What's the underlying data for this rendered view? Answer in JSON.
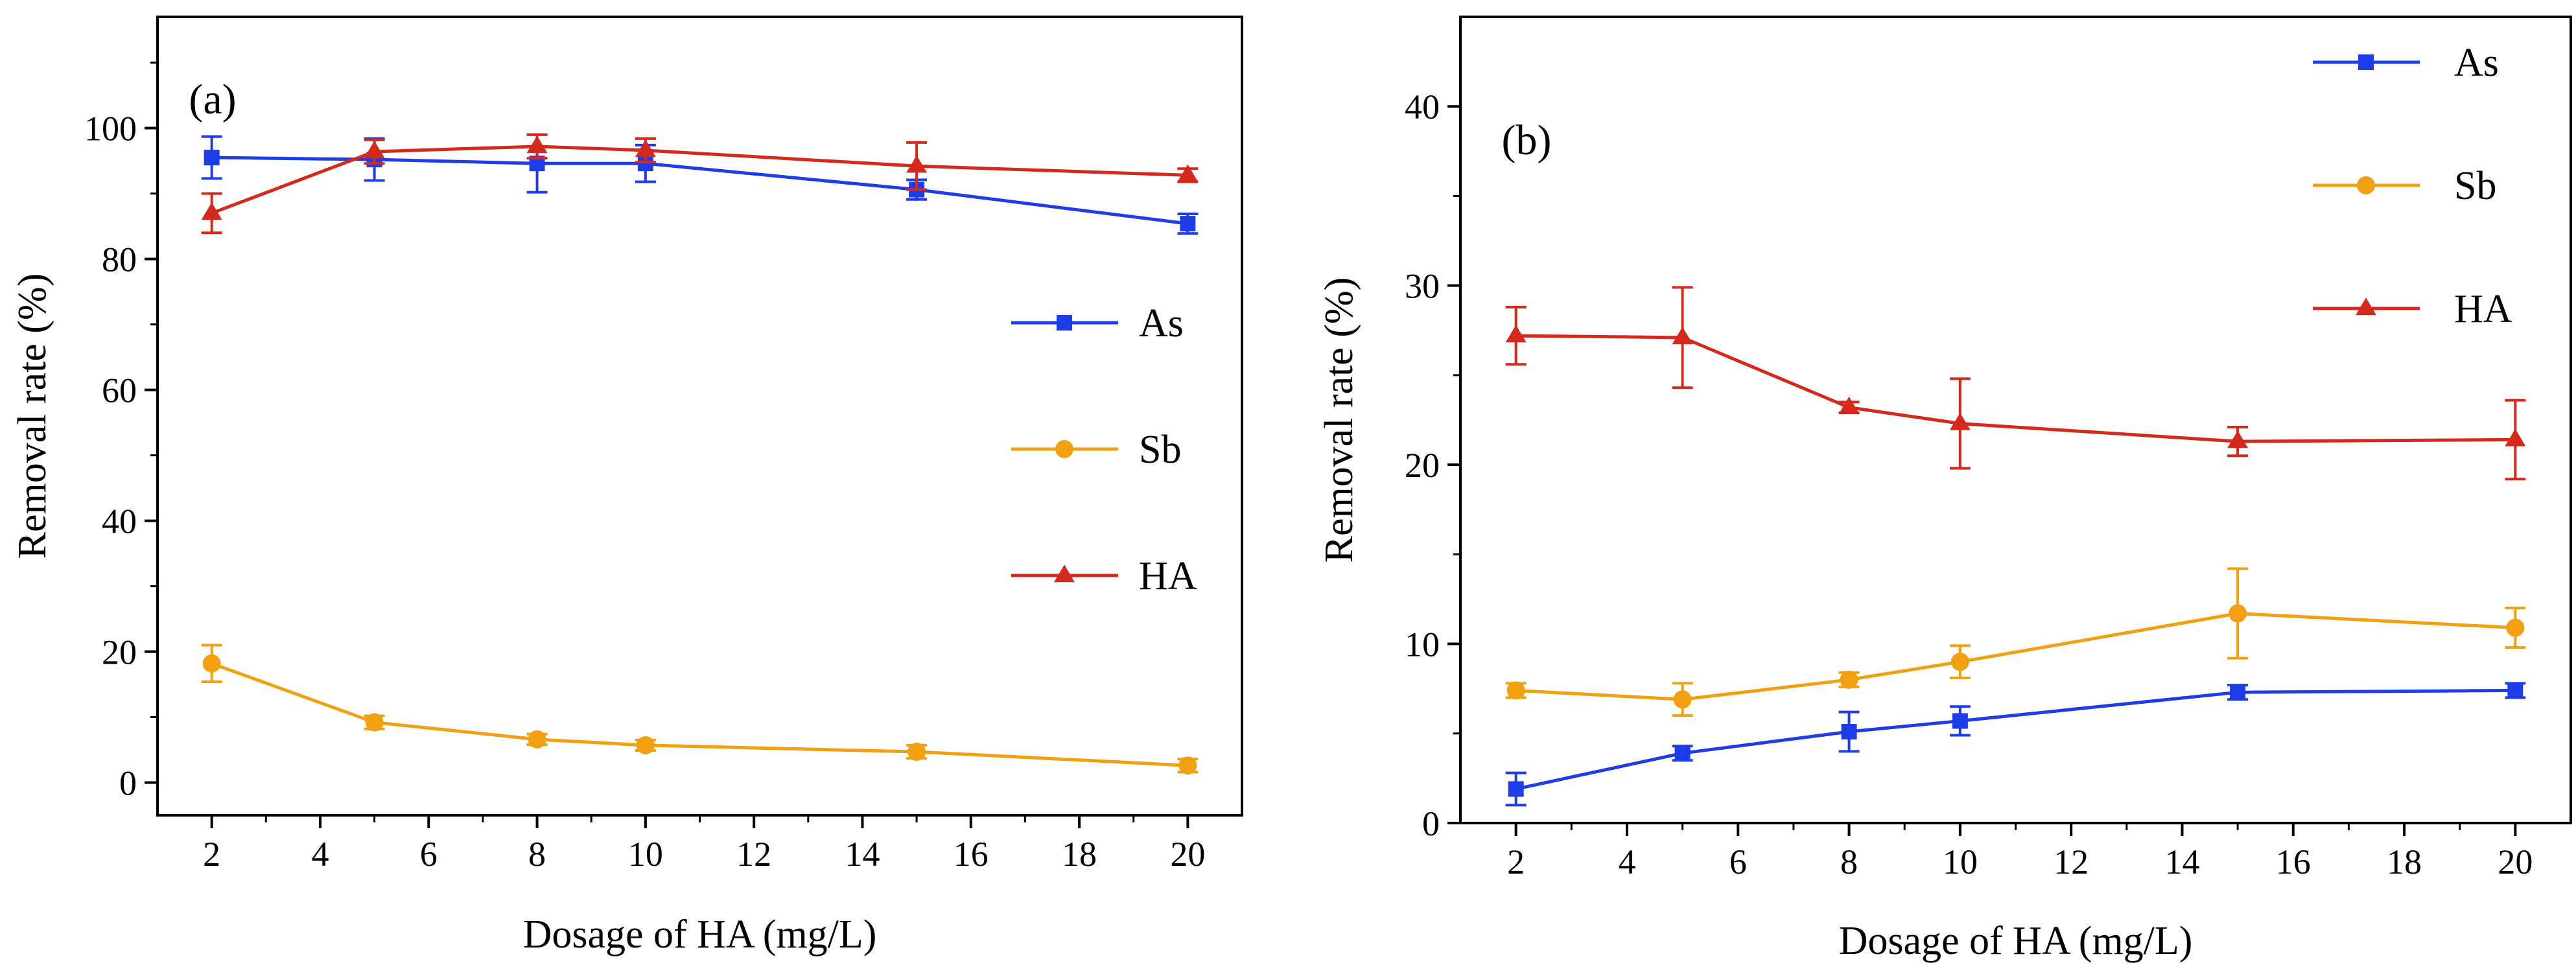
{
  "chart_data": [
    {
      "type": "line",
      "panel_label": "(a)",
      "xlabel": "Dosage of HA (mg/L)",
      "ylabel": "Removal rate (%)",
      "x": [
        2,
        5,
        8,
        10,
        15,
        20
      ],
      "xlim": [
        1,
        21
      ],
      "xticks": [
        2,
        4,
        6,
        8,
        10,
        12,
        14,
        16,
        18,
        20
      ],
      "ylim": [
        -5,
        117
      ],
      "yticks": [
        0,
        20,
        40,
        60,
        80,
        100
      ],
      "grid": false,
      "legend_position": "center-right",
      "series": [
        {
          "name": "As",
          "color": "#1f3de6",
          "marker": "square",
          "values": [
            95.5,
            95.2,
            94.6,
            94.6,
            90.6,
            85.4
          ],
          "errors": [
            3.2,
            3.2,
            4.4,
            2.8,
            1.5,
            1.5
          ]
        },
        {
          "name": "Sb",
          "color": "#f0a010",
          "marker": "circle",
          "values": [
            18.2,
            9.2,
            6.6,
            5.7,
            4.7,
            2.6
          ],
          "errors": [
            2.8,
            1.0,
            0.8,
            0.8,
            1.0,
            1.0
          ]
        },
        {
          "name": "HA",
          "color": "#d42a1e",
          "marker": "triangle",
          "values": [
            87.0,
            96.4,
            97.2,
            96.6,
            94.2,
            92.8
          ],
          "errors": [
            3.0,
            1.8,
            1.8,
            1.8,
            3.6,
            1.0
          ]
        }
      ]
    },
    {
      "type": "line",
      "panel_label": "(b)",
      "xlabel": "Dosage of HA (mg/L)",
      "ylabel": "Removal rate (%)",
      "x": [
        2,
        5,
        8,
        10,
        15,
        20
      ],
      "xlim": [
        1,
        21
      ],
      "xticks": [
        2,
        4,
        6,
        8,
        10,
        12,
        14,
        16,
        18,
        20
      ],
      "ylim": [
        0,
        45
      ],
      "yticks": [
        0,
        10,
        20,
        30,
        40
      ],
      "grid": false,
      "legend_position": "top-right",
      "series": [
        {
          "name": "As",
          "color": "#1f3de6",
          "marker": "square",
          "values": [
            1.9,
            3.9,
            5.1,
            5.7,
            7.3,
            7.4
          ],
          "errors": [
            0.9,
            0.4,
            1.1,
            0.8,
            0.4,
            0.4
          ]
        },
        {
          "name": "Sb",
          "color": "#f0a010",
          "marker": "circle",
          "values": [
            7.4,
            6.9,
            8.0,
            9.0,
            11.7,
            10.9
          ],
          "errors": [
            0.4,
            0.9,
            0.4,
            0.9,
            2.5,
            1.1
          ]
        },
        {
          "name": "HA",
          "color": "#d42a1e",
          "marker": "triangle",
          "values": [
            27.2,
            27.1,
            23.2,
            22.3,
            21.3,
            21.4
          ],
          "errors": [
            1.6,
            2.8,
            0.3,
            2.5,
            0.8,
            2.2
          ]
        }
      ]
    }
  ]
}
